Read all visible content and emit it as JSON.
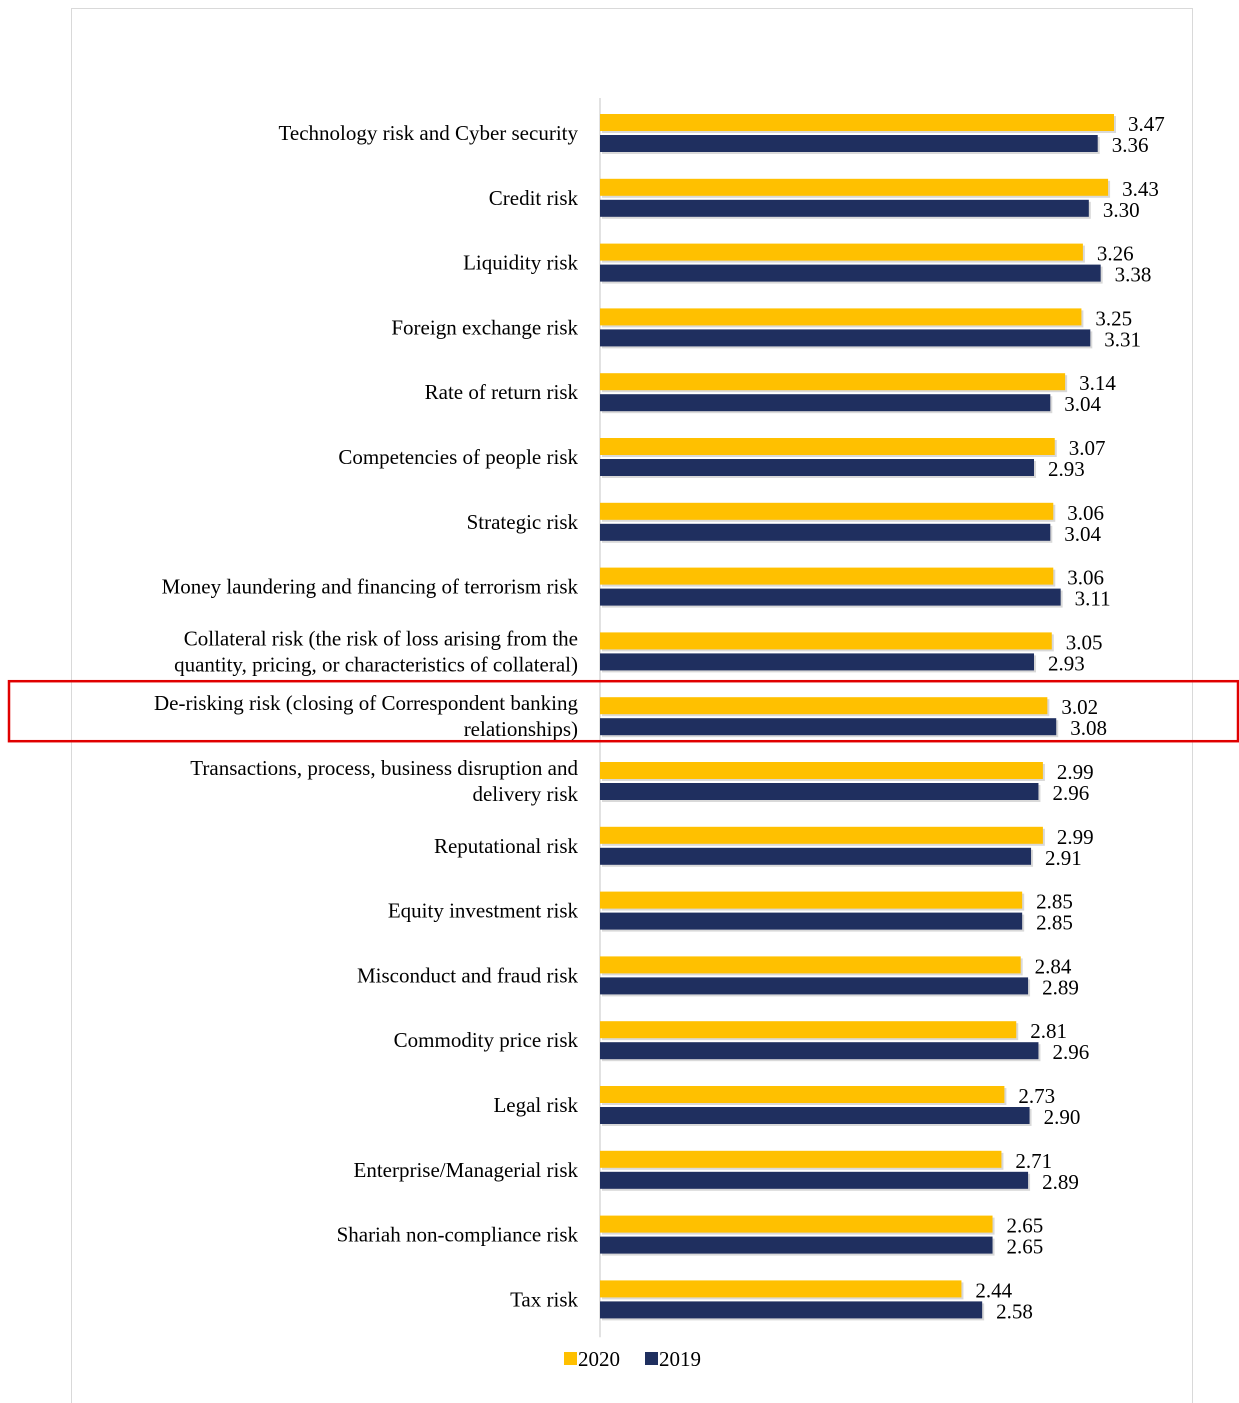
{
  "chart_data": {
    "type": "bar",
    "orientation": "horizontal",
    "title": "",
    "xlabel": "",
    "ylabel": "",
    "grid": false,
    "legend_position": "bottom",
    "categories": [
      [
        "Technology risk and Cyber security"
      ],
      [
        "Credit risk"
      ],
      [
        "Liquidity risk"
      ],
      [
        "Foreign exchange risk"
      ],
      [
        "Rate of return risk"
      ],
      [
        "Competencies of people risk"
      ],
      [
        "Strategic risk"
      ],
      [
        "Money laundering and financing of terrorism risk"
      ],
      [
        "Collateral risk (the risk of loss arising from the",
        "quantity, pricing, or characteristics of collateral)"
      ],
      [
        "De-risking risk (closing of Correspondent banking",
        "relationships)"
      ],
      [
        "Transactions, process, business disruption and",
        "delivery risk"
      ],
      [
        "Reputational risk"
      ],
      [
        "Equity investment risk"
      ],
      [
        "Misconduct and fraud risk"
      ],
      [
        "Commodity price risk"
      ],
      [
        "Legal risk"
      ],
      [
        "Enterprise/Managerial risk"
      ],
      [
        "Shariah non-compliance risk"
      ],
      [
        "Tax risk"
      ]
    ],
    "series": [
      {
        "name": "2020",
        "color": "#FFC000",
        "values": [
          3.47,
          3.43,
          3.26,
          3.25,
          3.14,
          3.07,
          3.06,
          3.06,
          3.05,
          3.02,
          2.99,
          2.99,
          2.85,
          2.84,
          2.81,
          2.73,
          2.71,
          2.65,
          2.44
        ],
        "labels": [
          "3.47",
          "3.43",
          "3.26",
          "3.25",
          "3.14",
          "3.07",
          "3.06",
          "3.06",
          "3.05",
          "3.02",
          "2.99",
          "2.99",
          "2.85",
          "2.84",
          "2.81",
          "2.73",
          "2.71",
          "2.65",
          "2.44"
        ]
      },
      {
        "name": "2019",
        "color": "#1F2F5F",
        "values": [
          3.36,
          3.3,
          3.38,
          3.31,
          3.04,
          2.93,
          3.04,
          3.11,
          2.93,
          3.08,
          2.96,
          2.91,
          2.85,
          2.89,
          2.96,
          2.9,
          2.89,
          2.65,
          2.58
        ],
        "labels": [
          "3.36",
          "3.30",
          "3.38",
          "3.31",
          "3.04",
          "2.93",
          "3.04",
          "3.11",
          "2.93",
          "3.08",
          "2.96",
          "2.91",
          "2.85",
          "2.89",
          "2.96",
          "2.90",
          "2.89",
          "2.65",
          "2.58"
        ]
      }
    ],
    "highlighted_category_index": 9,
    "highlight_color": "#E00000"
  }
}
